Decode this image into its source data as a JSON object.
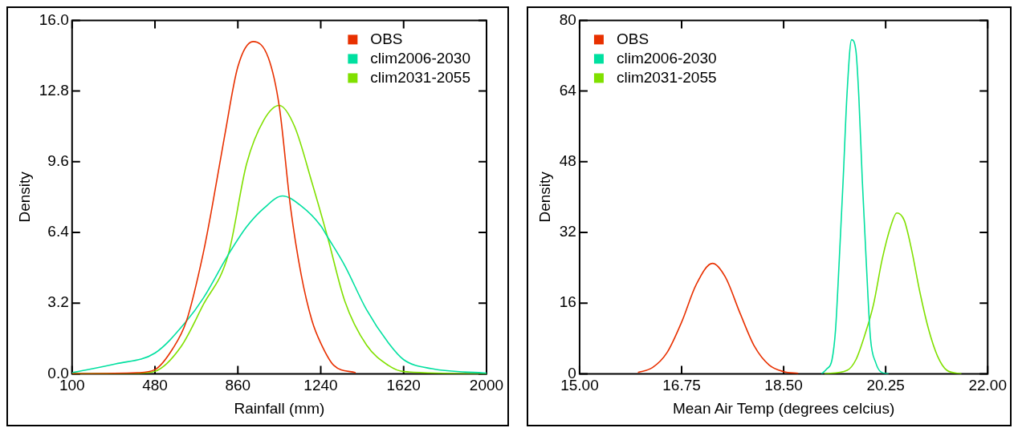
{
  "chart_data": [
    {
      "type": "line",
      "xlabel": "Rainfall (mm)",
      "ylabel": "Density",
      "xlim": [
        100,
        2000
      ],
      "xticks": [
        100,
        480,
        860,
        1240,
        1620,
        2000
      ],
      "ylim": [
        0,
        16
      ],
      "yticks": [
        {
          "value": 0,
          "label": "0.0"
        },
        {
          "value": 3.2,
          "label": "3.2"
        },
        {
          "value": 6.4,
          "label": "6.4"
        },
        {
          "value": 9.6,
          "label": "9.6"
        },
        {
          "value": 12.8,
          "label": "12.8"
        },
        {
          "value": 16,
          "label": "16.0"
        }
      ],
      "grid": false,
      "legend": "top right",
      "marker": "none",
      "line_style": "solid",
      "series": [
        {
          "name": "OBS",
          "color": "#e83000",
          "x": [
            100,
            400,
            480,
            561,
            624,
            700,
            741,
            800,
            860,
            930,
            1000,
            1050,
            1102,
            1150,
            1200,
            1240,
            1300,
            1400
          ],
          "values": [
            0,
            0.05,
            0.19,
            1.13,
            2.38,
            5.4,
            7.5,
            10.8,
            13.9,
            15.04,
            14.3,
            12.1,
            7.5,
            4.5,
            2.4,
            1.39,
            0.38,
            0.05
          ]
        },
        {
          "name": "clim2006-2030",
          "color": "#00e0a0",
          "x": [
            100,
            300,
            480,
            624,
            700,
            816,
            900,
            980,
            1065,
            1150,
            1240,
            1271,
            1350,
            1450,
            1550,
            1620,
            1750,
            2000
          ],
          "values": [
            0.05,
            0.45,
            0.94,
            2.38,
            3.4,
            5.39,
            6.65,
            7.5,
            8.05,
            7.6,
            6.7,
            6.2,
            4.9,
            2.9,
            1.4,
            0.64,
            0.23,
            0.03
          ]
        },
        {
          "name": "clim2031-2055",
          "color": "#80e000",
          "x": [
            100,
            400,
            480,
            600,
            700,
            816,
            900,
            980,
            1050,
            1120,
            1200,
            1271,
            1350,
            1450,
            1550,
            1620,
            2000
          ],
          "values": [
            0,
            0.02,
            0.11,
            1.24,
            3.1,
            5.39,
            9.5,
            11.5,
            12.15,
            11.2,
            8.65,
            6.2,
            3.3,
            1.3,
            0.38,
            0.1,
            0
          ]
        }
      ]
    },
    {
      "type": "line",
      "xlabel": "Mean Air Temp (degrees celcius)",
      "ylabel": "Density",
      "xlim": [
        15,
        22
      ],
      "xticks": [
        {
          "value": 15,
          "label": "15.00"
        },
        {
          "value": 16.75,
          "label": "16.75"
        },
        {
          "value": 18.5,
          "label": "18.50"
        },
        {
          "value": 20.25,
          "label": "20.25"
        },
        {
          "value": 22,
          "label": "22.00"
        }
      ],
      "ylim": [
        0,
        80
      ],
      "yticks": [
        0,
        16,
        32,
        48,
        64,
        80
      ],
      "grid": false,
      "legend": "top left",
      "marker": "none",
      "line_style": "solid",
      "series": [
        {
          "name": "OBS",
          "color": "#e83000",
          "x": [
            16,
            16.25,
            16.5,
            16.75,
            17,
            17.28,
            17.5,
            17.75,
            18,
            18.25,
            18.5,
            18.75
          ],
          "values": [
            0.3,
            1.4,
            4.8,
            11.7,
            20.2,
            25,
            21.9,
            13.8,
            6.2,
            2,
            0.5,
            0.1
          ]
        },
        {
          "name": "clim2006-2030",
          "color": "#00e0a0",
          "x": [
            19.15,
            19.24,
            19.33,
            19.39,
            19.45,
            19.52,
            19.59,
            19.665,
            19.74,
            19.79,
            19.85,
            19.92,
            19.99,
            20.08,
            20.17,
            20.3
          ],
          "values": [
            0,
            1.1,
            3.2,
            9.9,
            24.6,
            43.6,
            64,
            75.6,
            73.1,
            62.7,
            43.6,
            24.6,
            8,
            2.5,
            0.4,
            0
          ]
        },
        {
          "name": "clim2031-2055",
          "color": "#80e000",
          "x": [
            19.2,
            19.59,
            19.74,
            19.89,
            20.04,
            20.19,
            20.34,
            20.44,
            20.57,
            20.69,
            20.84,
            20.99,
            21.14,
            21.3,
            21.55
          ],
          "values": [
            0,
            0.8,
            3.2,
            8.7,
            15.6,
            25.9,
            33.5,
            36.4,
            34.7,
            28.4,
            18.3,
            9.9,
            4,
            0.8,
            0
          ]
        }
      ]
    }
  ]
}
